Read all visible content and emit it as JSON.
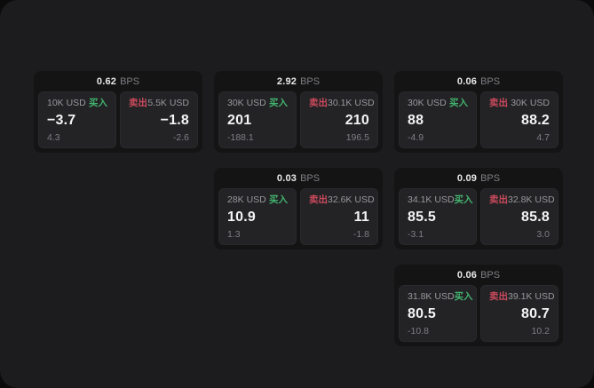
{
  "labels": {
    "bps_unit": "BPS",
    "buy": "买入",
    "sell": "卖出"
  },
  "colors": {
    "outer_background": "#0b0b0c",
    "window_background": "#1c1c1e",
    "card_background": "#141415",
    "panel_background": "#232326",
    "buy_green": "#43b36e",
    "sell_red": "#cb4a5c",
    "text_primary": "#f4f4f5",
    "text_secondary": "#98989c",
    "text_muted": "#7f7f84"
  },
  "cards": [
    {
      "bps": "0.62",
      "buy": {
        "amount": "10K USD",
        "value": "−3.7",
        "delta": "4.3"
      },
      "sell": {
        "amount": "5.5K USD",
        "value": "−1.8",
        "delta": "-2.6"
      }
    },
    {
      "bps": "2.92",
      "buy": {
        "amount": "30K USD",
        "value": "201",
        "delta": "-188.1"
      },
      "sell": {
        "amount": "30.1K USD",
        "value": "210",
        "delta": "196.5"
      }
    },
    {
      "bps": "0.06",
      "buy": {
        "amount": "30K USD",
        "value": "88",
        "delta": "-4.9"
      },
      "sell": {
        "amount": "30K USD",
        "value": "88.2",
        "delta": "4.7"
      }
    },
    {
      "bps": "0.03",
      "buy": {
        "amount": "28K USD",
        "value": "10.9",
        "delta": "1.3"
      },
      "sell": {
        "amount": "32.6K USD",
        "value": "11",
        "delta": "-1.8"
      }
    },
    {
      "bps": "0.09",
      "buy": {
        "amount": "34.1K USD",
        "value": "85.5",
        "delta": "-3.1"
      },
      "sell": {
        "amount": "32.8K USD",
        "value": "85.8",
        "delta": "3.0"
      }
    },
    {
      "bps": "0.06",
      "buy": {
        "amount": "31.8K USD",
        "value": "80.5",
        "delta": "-10.8"
      },
      "sell": {
        "amount": "39.1K USD",
        "value": "80.7",
        "delta": "10.2"
      }
    }
  ]
}
